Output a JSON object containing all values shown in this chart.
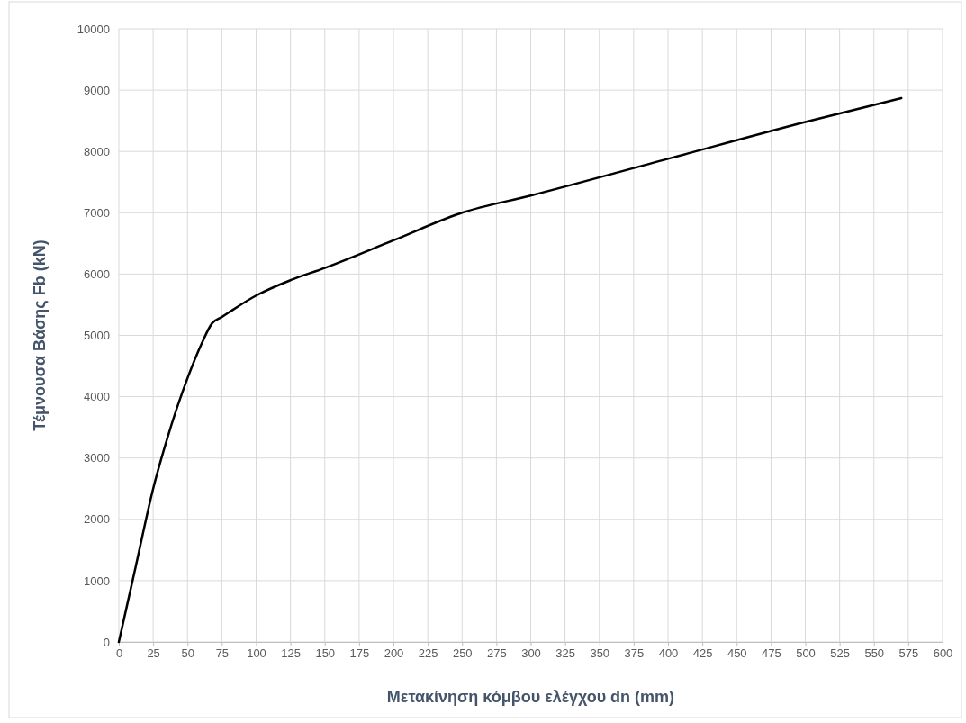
{
  "chart_data": {
    "type": "line",
    "xlabel": "Μετακίνηση κόμβου ελέγχου dn (mm)",
    "ylabel": "Τέμνουσα Βάσης Fb (kN)",
    "x": [
      0,
      12,
      25,
      35,
      50,
      60,
      68,
      75,
      100,
      125,
      150,
      200,
      250,
      300,
      400,
      500,
      570
    ],
    "series": [
      {
        "color": "#000000",
        "values": [
          0,
          1200,
          2500,
          3300,
          4300,
          4850,
          5200,
          5300,
          5650,
          5900,
          6100,
          6550,
          7000,
          7280,
          7880,
          8480,
          8870
        ]
      }
    ],
    "xlim": [
      0,
      600
    ],
    "xticks": [
      0,
      25,
      50,
      75,
      100,
      125,
      150,
      175,
      200,
      225,
      250,
      275,
      300,
      325,
      350,
      375,
      400,
      425,
      450,
      475,
      500,
      525,
      550,
      575,
      600
    ],
    "ylim": [
      0,
      10000
    ],
    "yticks": [
      0,
      1000,
      2000,
      3000,
      4000,
      5000,
      6000,
      7000,
      8000,
      9000,
      10000
    ],
    "grid": true,
    "marker": "none",
    "line_style": "solid"
  }
}
